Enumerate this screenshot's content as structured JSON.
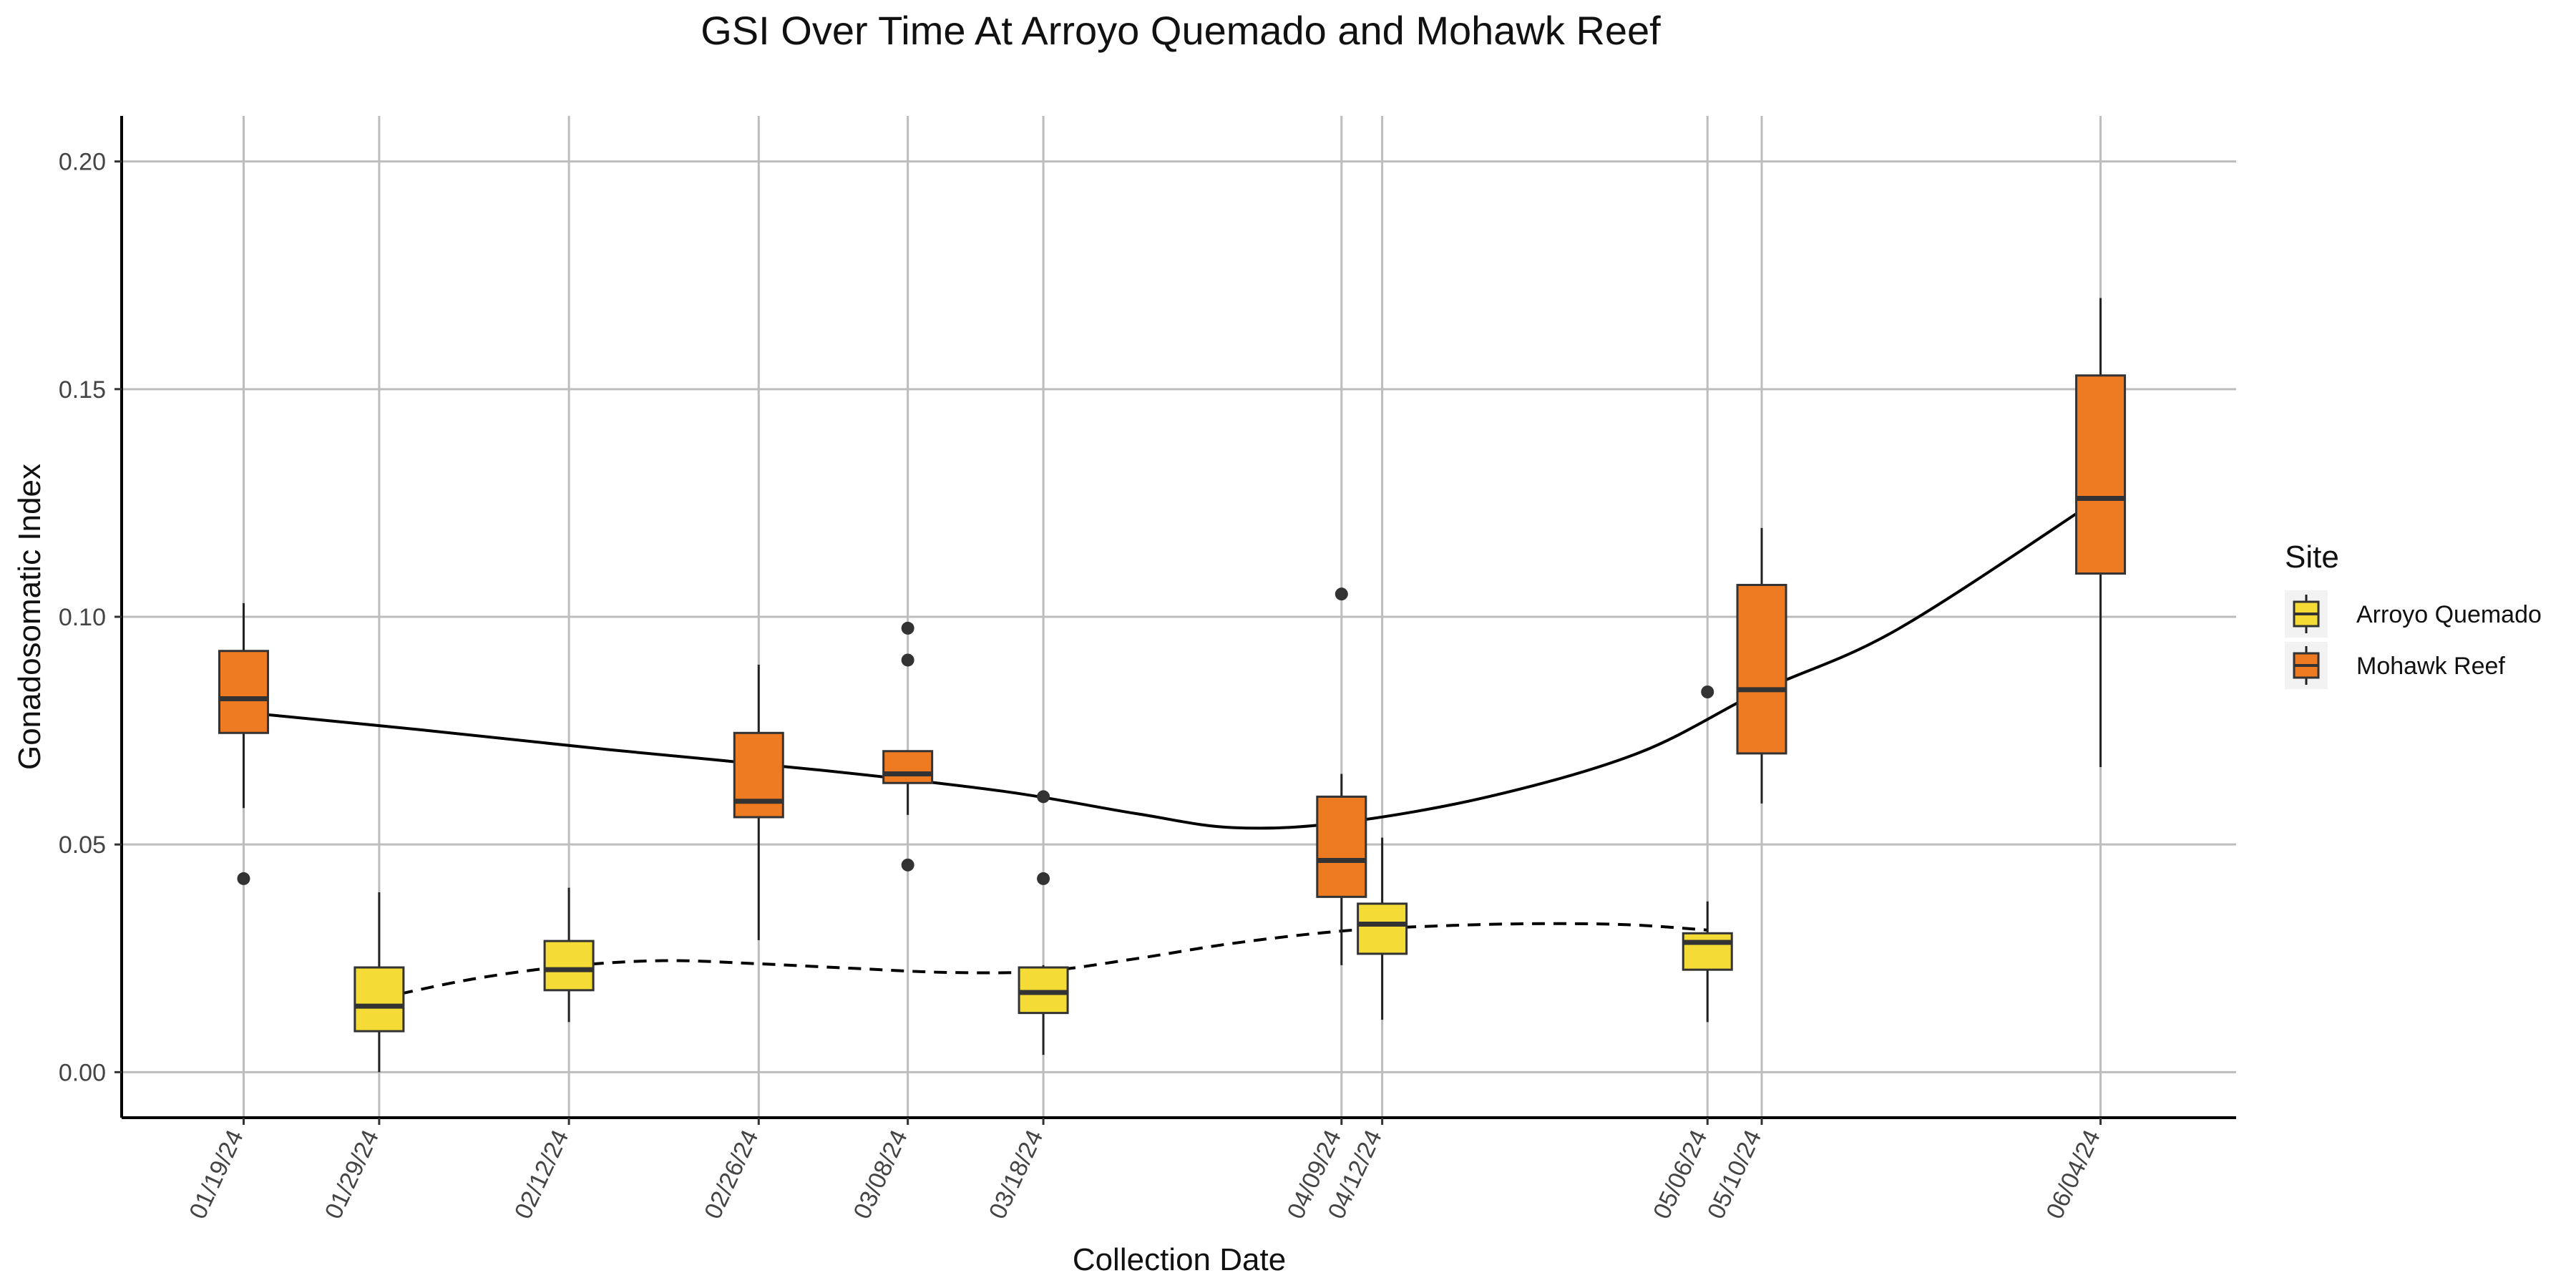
{
  "chart_data": {
    "type": "box",
    "title": "GSI Over Time At Arroyo Quemado and Mohawk Reef",
    "xlabel": "Collection Date",
    "ylabel": "Gonadosomatic Index",
    "x_type": "date",
    "x_ticks": [
      "01/19/24",
      "01/29/24",
      "02/12/24",
      "02/26/24",
      "03/08/24",
      "03/18/24",
      "04/09/24",
      "04/12/24",
      "05/06/24",
      "05/10/24",
      "06/04/24"
    ],
    "x_range": [
      "2024-01-10",
      "2024-06-14"
    ],
    "y_ticks": [
      "0.00",
      "0.05",
      "0.10",
      "0.15",
      "0.20"
    ],
    "ylim": [
      -0.01,
      0.21
    ],
    "grid": true,
    "legend": {
      "title": "Site",
      "placement": "right",
      "entries": [
        {
          "name": "Arroyo Quemado",
          "color": "#F4DB35"
        },
        {
          "name": "Mohawk Reef",
          "color": "#EE7A22"
        }
      ]
    },
    "series": [
      {
        "name": "Arroyo Quemado",
        "color": "#F4DB35",
        "line_style": "dashed",
        "boxes": [
          {
            "date": "2024-01-29",
            "min": 0.0,
            "q1": 0.009,
            "median": 0.0145,
            "q3": 0.023,
            "max": 0.0395,
            "outliers": []
          },
          {
            "date": "2024-02-12",
            "min": 0.011,
            "q1": 0.018,
            "median": 0.0225,
            "q3": 0.0288,
            "max": 0.0405,
            "outliers": []
          },
          {
            "date": "2024-03-18",
            "min": 0.0038,
            "q1": 0.013,
            "median": 0.0175,
            "q3": 0.023,
            "max": 0.0235,
            "outliers": [
              0.0425,
              0.0605
            ]
          },
          {
            "date": "2024-04-12",
            "min": 0.0115,
            "q1": 0.026,
            "median": 0.0325,
            "q3": 0.037,
            "max": 0.0515,
            "outliers": []
          },
          {
            "date": "2024-05-06",
            "min": 0.011,
            "q1": 0.0225,
            "median": 0.0285,
            "q3": 0.0305,
            "max": 0.0375,
            "outliers": [
              0.0835
            ]
          }
        ],
        "trend": [
          {
            "date": "2024-01-29",
            "y": 0.0162
          },
          {
            "date": "2024-02-05",
            "y": 0.0205
          },
          {
            "date": "2024-02-12",
            "y": 0.0233
          },
          {
            "date": "2024-02-19",
            "y": 0.0245
          },
          {
            "date": "2024-02-26",
            "y": 0.0238
          },
          {
            "date": "2024-03-04",
            "y": 0.0228
          },
          {
            "date": "2024-03-11",
            "y": 0.0219
          },
          {
            "date": "2024-03-18",
            "y": 0.0222
          },
          {
            "date": "2024-03-25",
            "y": 0.025
          },
          {
            "date": "2024-04-01",
            "y": 0.0283
          },
          {
            "date": "2024-04-09",
            "y": 0.031
          },
          {
            "date": "2024-04-16",
            "y": 0.0321
          },
          {
            "date": "2024-04-23",
            "y": 0.0326
          },
          {
            "date": "2024-04-30",
            "y": 0.0324
          },
          {
            "date": "2024-05-06",
            "y": 0.0312
          }
        ]
      },
      {
        "name": "Mohawk Reef",
        "color": "#EE7A22",
        "line_style": "solid",
        "boxes": [
          {
            "date": "2024-01-19",
            "min": 0.058,
            "q1": 0.0745,
            "median": 0.082,
            "q3": 0.0925,
            "max": 0.103,
            "outliers": [
              0.0425
            ]
          },
          {
            "date": "2024-02-26",
            "min": 0.029,
            "q1": 0.056,
            "median": 0.0595,
            "q3": 0.0745,
            "max": 0.0895,
            "outliers": []
          },
          {
            "date": "2024-03-08",
            "min": 0.0565,
            "q1": 0.0635,
            "median": 0.0655,
            "q3": 0.0705,
            "max": 0.0705,
            "outliers": [
              0.0455,
              0.0905,
              0.0975
            ]
          },
          {
            "date": "2024-04-09",
            "min": 0.0235,
            "q1": 0.0385,
            "median": 0.0465,
            "q3": 0.0605,
            "max": 0.0655,
            "outliers": [
              0.105
            ]
          },
          {
            "date": "2024-05-10",
            "min": 0.059,
            "q1": 0.07,
            "median": 0.084,
            "q3": 0.107,
            "max": 0.1195,
            "outliers": []
          },
          {
            "date": "2024-06-04",
            "min": 0.067,
            "q1": 0.1095,
            "median": 0.126,
            "q3": 0.153,
            "max": 0.17,
            "outliers": []
          }
        ],
        "trend": [
          {
            "date": "2024-01-19",
            "y": 0.079
          },
          {
            "date": "2024-02-01",
            "y": 0.0752
          },
          {
            "date": "2024-02-15",
            "y": 0.0708
          },
          {
            "date": "2024-03-01",
            "y": 0.0665
          },
          {
            "date": "2024-03-15",
            "y": 0.0617
          },
          {
            "date": "2024-03-25",
            "y": 0.0567
          },
          {
            "date": "2024-04-01",
            "y": 0.0537
          },
          {
            "date": "2024-04-09",
            "y": 0.0548
          },
          {
            "date": "2024-04-20",
            "y": 0.0606
          },
          {
            "date": "2024-05-01",
            "y": 0.0702
          },
          {
            "date": "2024-05-10",
            "y": 0.0838
          },
          {
            "date": "2024-05-20",
            "y": 0.0972
          },
          {
            "date": "2024-06-04",
            "y": 0.1262
          }
        ]
      }
    ]
  }
}
